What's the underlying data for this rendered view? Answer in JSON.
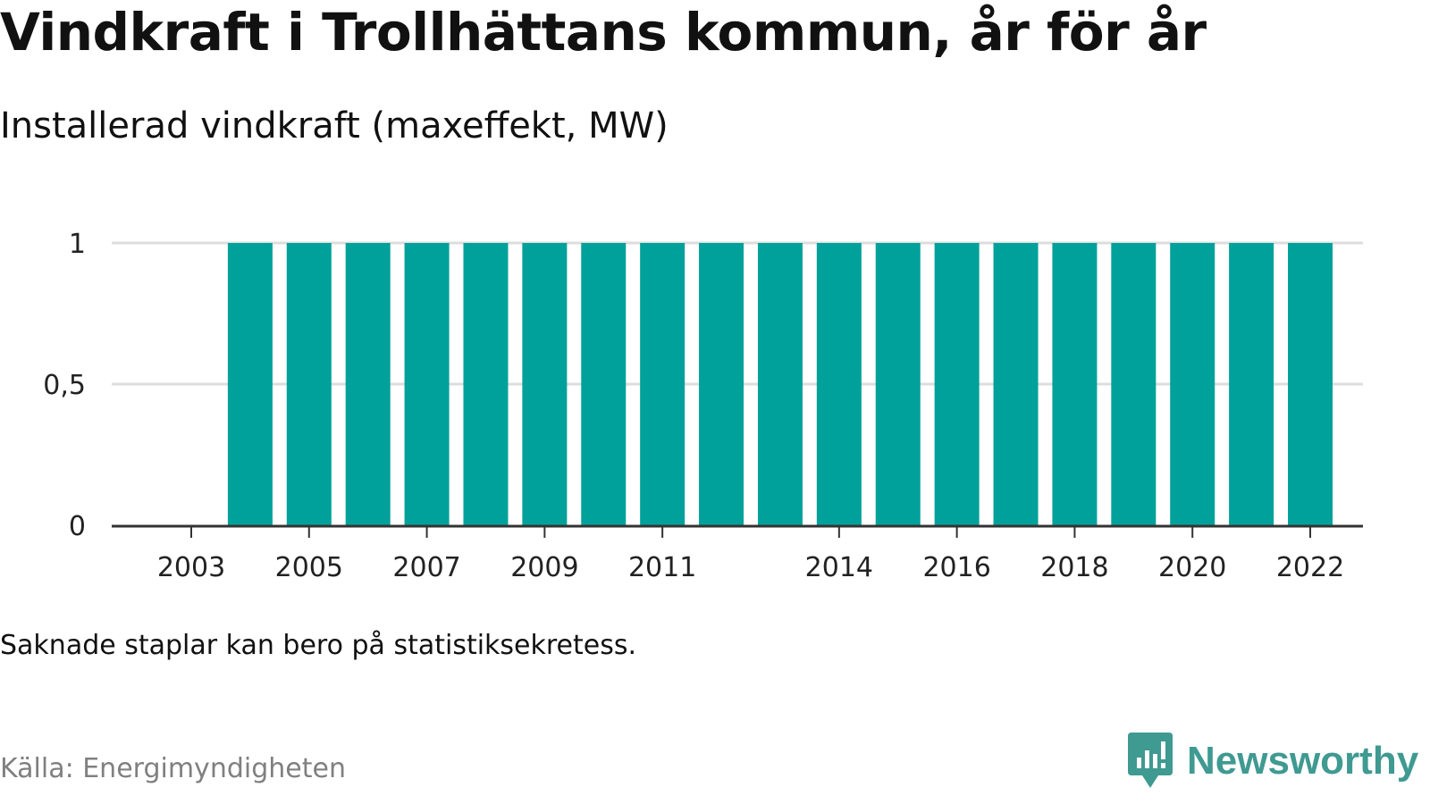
{
  "header": {
    "title": "Vindkraft i Trollhättans kommun, år för år",
    "subtitle": "Installerad vindkraft (maxeffekt, MW)"
  },
  "footer": {
    "note": "Saknade staplar kan bero på statistiksekretess.",
    "source": "Källa: Energimyndigheten",
    "brand": "Newsworthy",
    "brand_icon": "newsworthy-logo-icon"
  },
  "colors": {
    "bar": "#00a19a",
    "grid": "#dddddd",
    "axis": "#333333",
    "brand": "#3f9a91"
  },
  "chart_data": {
    "type": "bar",
    "title": "Vindkraft i Trollhättans kommun, år för år",
    "subtitle": "Installerad vindkraft (maxeffekt, MW)",
    "categories": [
      2003,
      2004,
      2005,
      2006,
      2007,
      2008,
      2009,
      2010,
      2011,
      2012,
      2013,
      2014,
      2015,
      2016,
      2017,
      2018,
      2019,
      2020,
      2021,
      2022
    ],
    "values": [
      null,
      1,
      1,
      1,
      1,
      1,
      1,
      1,
      1,
      1,
      1,
      1,
      1,
      1,
      1,
      1,
      1,
      1,
      1,
      1
    ],
    "xticks": [
      2003,
      2005,
      2007,
      2009,
      2011,
      2014,
      2016,
      2018,
      2020,
      2022
    ],
    "yticks": [
      0,
      0.5,
      1
    ],
    "ytick_labels": [
      "0",
      "0,5",
      "1"
    ],
    "ylim": [
      0,
      1
    ],
    "xlabel": "",
    "ylabel": "",
    "grid": true,
    "legend": false
  }
}
